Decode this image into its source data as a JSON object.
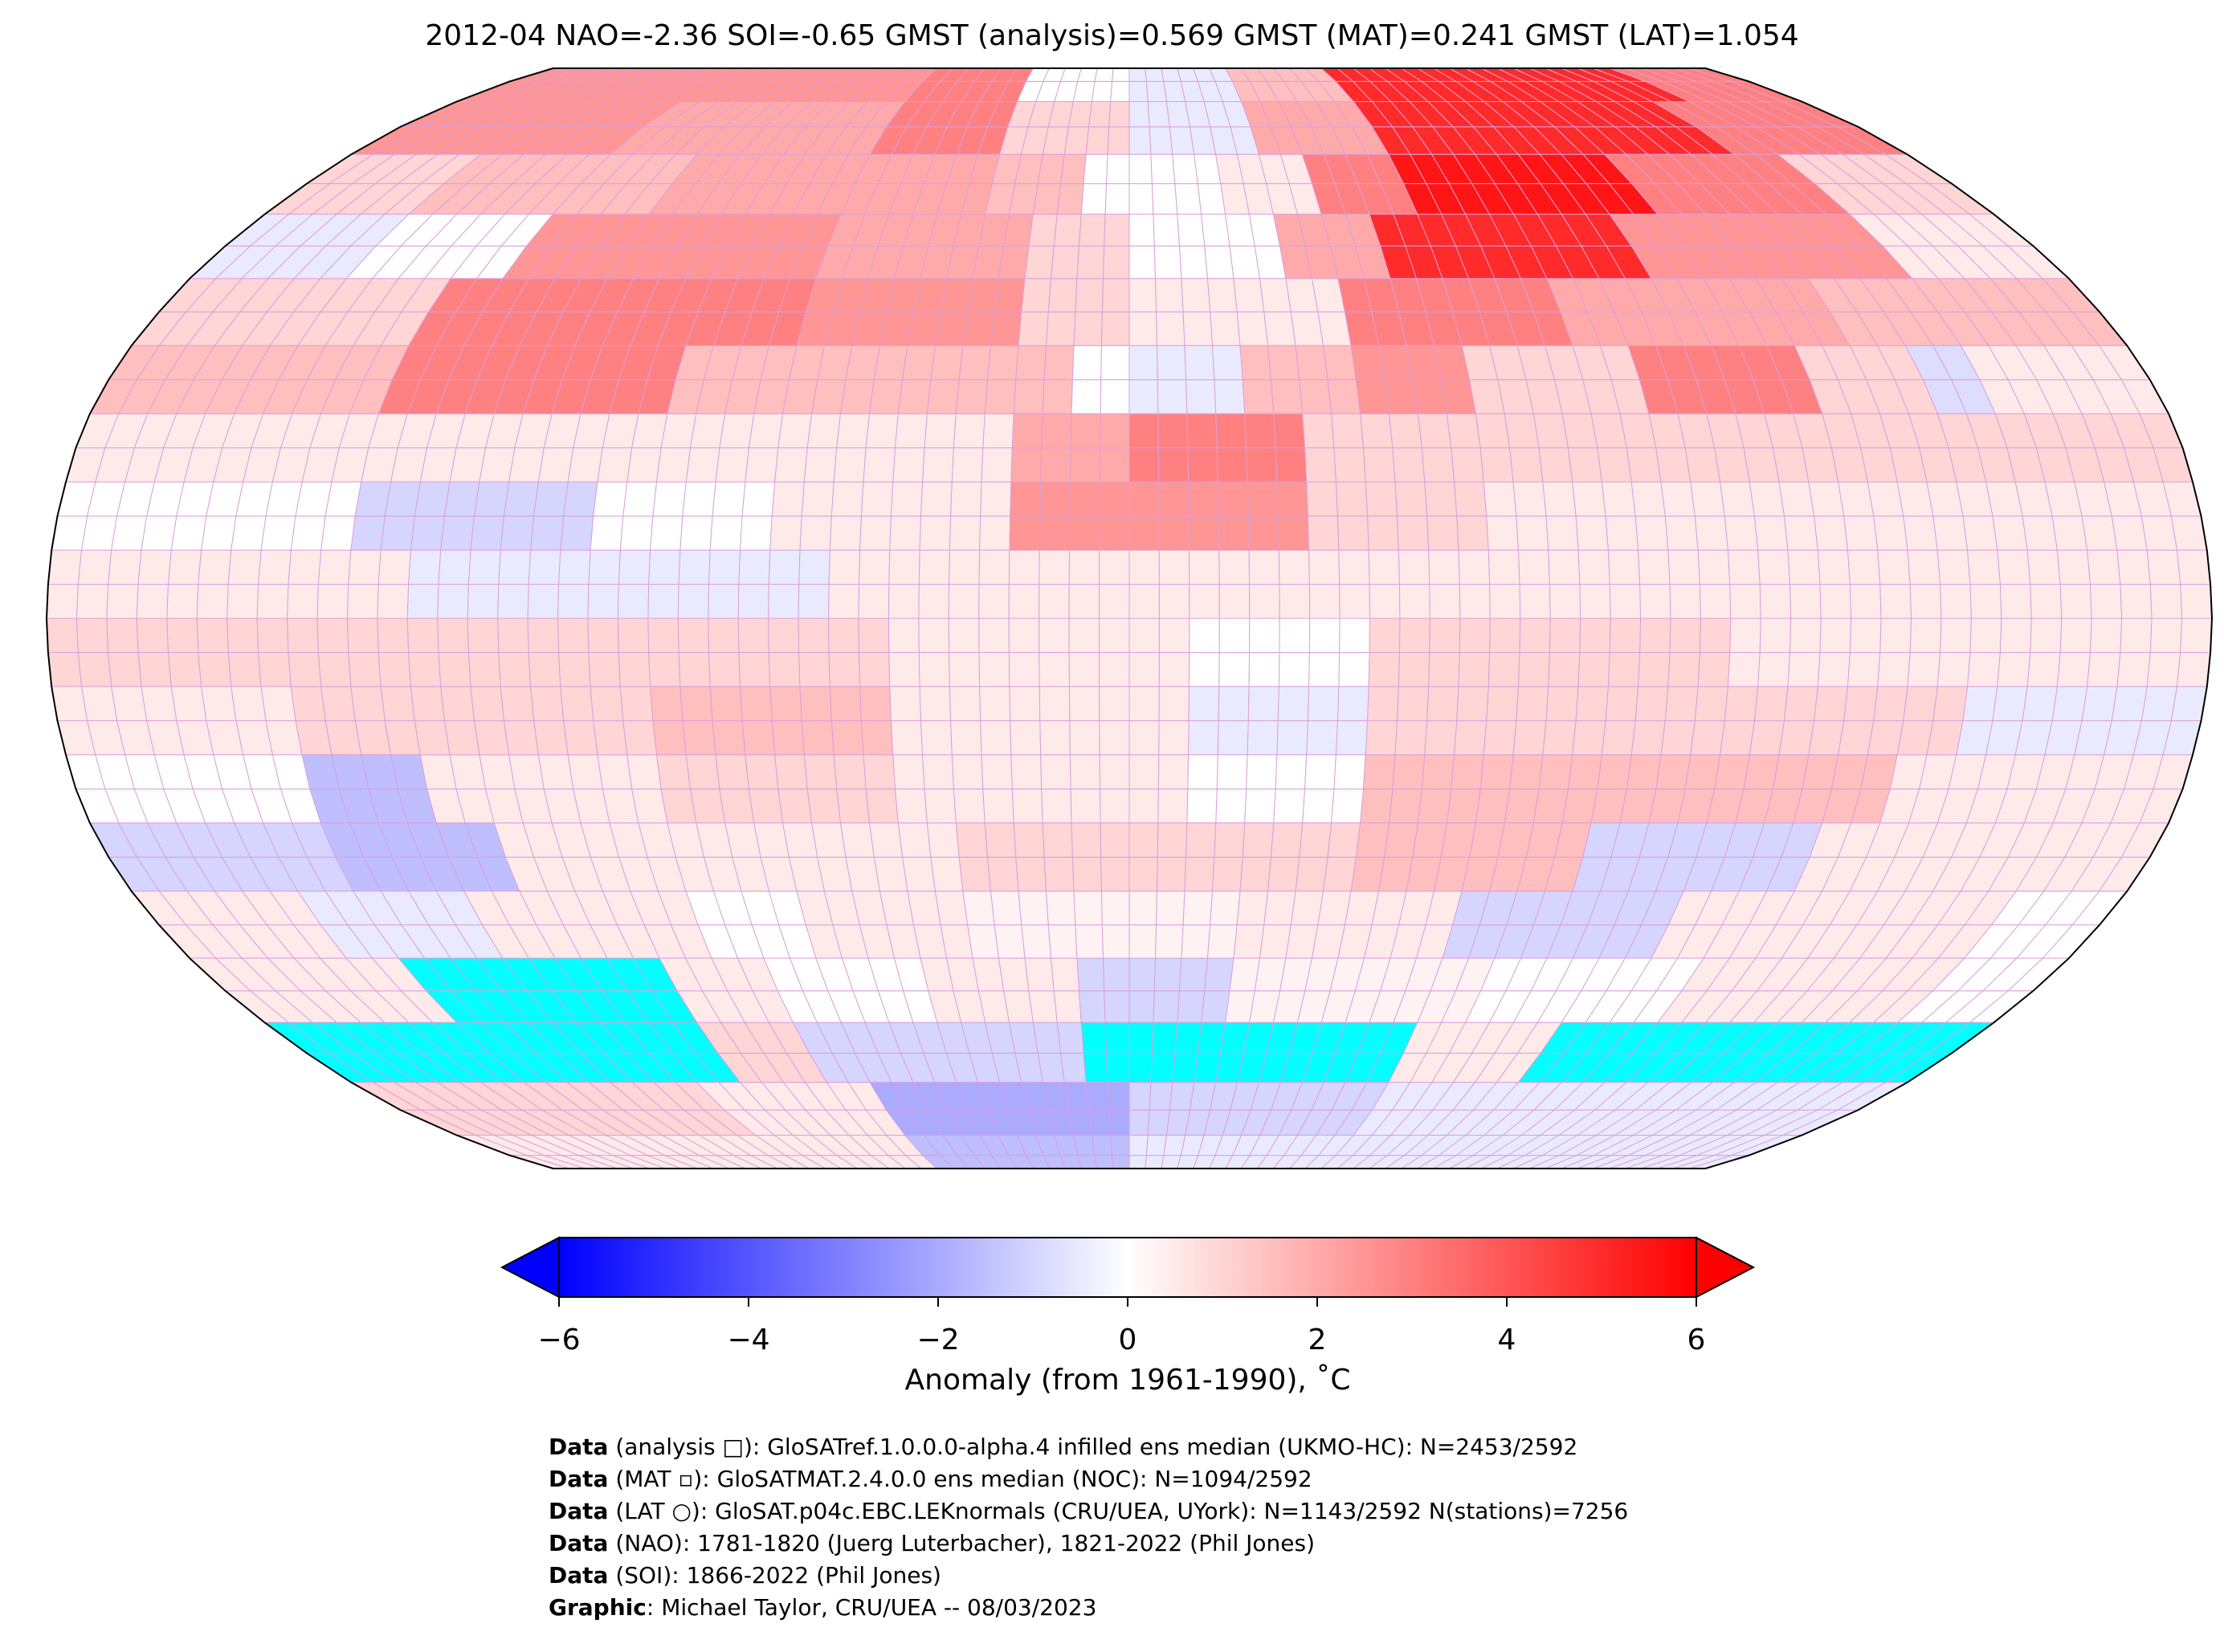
{
  "title": "2012-04 NAO=-2.36 SOI=-0.65 GMST (analysis)=0.569 GMST (MAT)=0.241 GMST (LAT)=1.054",
  "colorbar": {
    "label": "Anomaly (from 1961-1990), ˚C",
    "ticks": [
      "−6",
      "−4",
      "−2",
      "0",
      "2",
      "4",
      "6"
    ],
    "tick_values": [
      -6,
      -4,
      -2,
      0,
      2,
      4,
      6
    ],
    "range": [
      -6,
      6
    ],
    "colormap": "bwr",
    "low_color": "#0000ff",
    "mid_color": "#ffffff",
    "high_color": "#ff0000",
    "missing_color": "#00ffff"
  },
  "footer": [
    {
      "bold": "Data",
      "text": " (analysis □): GloSATref.1.0.0.0-alpha.4 infilled ens median (UKMO-HC): N=2453/2592"
    },
    {
      "bold": "Data",
      "text": " (MAT ▫): GloSATMAT.2.4.0.0 ens median (NOC): N=1094/2592"
    },
    {
      "bold": "Data",
      "text": " (LAT ○): GloSAT.p04c.EBC.LEKnormals (CRU/UEA, UYork): N=1143/2592 N(stations)=7256"
    },
    {
      "bold": "Data",
      "text": " (NAO): 1781-1820 (Juerg Luterbacher), 1821-2022 (Phil Jones)"
    },
    {
      "bold": "Data",
      "text": " (SOI): 1866-2022 (Phil Jones)"
    },
    {
      "bold": "Graphic",
      "text": ": Michael Taylor, CRU/UEA -- 08/03/2023"
    }
  ],
  "chart_data": {
    "type": "heatmap",
    "projection": "Robinson",
    "units": "°C anomaly",
    "rows": [
      {
        "lat": [
          80,
          90
        ],
        "seg": [
          [
            -180,
            -60,
            2.5
          ],
          [
            -60,
            -30,
            3
          ],
          [
            -30,
            0,
            0
          ],
          [
            0,
            30,
            -0.5
          ],
          [
            30,
            60,
            1.5
          ],
          [
            60,
            150,
            5
          ],
          [
            150,
            180,
            3
          ]
        ]
      },
      {
        "lat": [
          70,
          80
        ],
        "seg": [
          [
            -180,
            -120,
            2.5
          ],
          [
            -120,
            -60,
            2
          ],
          [
            -60,
            -30,
            3
          ],
          [
            -30,
            0,
            1
          ],
          [
            0,
            30,
            -0.5
          ],
          [
            30,
            60,
            2
          ],
          [
            60,
            140,
            5
          ],
          [
            140,
            180,
            3
          ]
        ]
      },
      {
        "lat": [
          60,
          70
        ],
        "seg": [
          [
            -180,
            -150,
            1
          ],
          [
            -150,
            -100,
            1.5
          ],
          [
            -100,
            -60,
            2
          ],
          [
            -60,
            -30,
            2
          ],
          [
            -30,
            -10,
            1.5
          ],
          [
            -10,
            20,
            0
          ],
          [
            20,
            40,
            0.5
          ],
          [
            40,
            60,
            3
          ],
          [
            60,
            110,
            5.5
          ],
          [
            110,
            150,
            3
          ],
          [
            150,
            180,
            1
          ]
        ]
      },
      {
        "lat": [
          50,
          60
        ],
        "seg": [
          [
            -180,
            -150,
            -0.5
          ],
          [
            -150,
            -120,
            0
          ],
          [
            -120,
            -60,
            2.5
          ],
          [
            -60,
            -20,
            2
          ],
          [
            -20,
            0,
            1
          ],
          [
            0,
            30,
            0
          ],
          [
            30,
            50,
            2
          ],
          [
            50,
            100,
            5
          ],
          [
            100,
            150,
            2.5
          ],
          [
            150,
            180,
            0.5
          ]
        ]
      },
      {
        "lat": [
          40,
          50
        ],
        "seg": [
          [
            -180,
            -130,
            1
          ],
          [
            -130,
            -60,
            3
          ],
          [
            -60,
            -20,
            2.5
          ],
          [
            -20,
            0,
            1
          ],
          [
            0,
            40,
            0.5
          ],
          [
            40,
            80,
            3
          ],
          [
            80,
            130,
            2
          ],
          [
            130,
            180,
            1.5
          ]
        ]
      },
      {
        "lat": [
          30,
          40
        ],
        "seg": [
          [
            -180,
            -130,
            1.5
          ],
          [
            -130,
            -80,
            3
          ],
          [
            -80,
            -10,
            1.5
          ],
          [
            -10,
            0,
            0
          ],
          [
            0,
            20,
            -0.5
          ],
          [
            20,
            40,
            1.5
          ],
          [
            40,
            60,
            2.5
          ],
          [
            60,
            90,
            1
          ],
          [
            90,
            120,
            3
          ],
          [
            120,
            140,
            1
          ],
          [
            140,
            150,
            -0.8
          ],
          [
            150,
            180,
            0.5
          ]
        ]
      },
      {
        "lat": [
          20,
          30
        ],
        "seg": [
          [
            -180,
            -20,
            0.5
          ],
          [
            -20,
            0,
            2
          ],
          [
            0,
            30,
            3
          ],
          [
            30,
            180,
            1
          ]
        ]
      },
      {
        "lat": [
          10,
          20
        ],
        "seg": [
          [
            -180,
            -130,
            0
          ],
          [
            -130,
            -90,
            -1
          ],
          [
            -90,
            -60,
            0
          ],
          [
            -60,
            -20,
            0.5
          ],
          [
            -20,
            30,
            2.5
          ],
          [
            30,
            60,
            1
          ],
          [
            60,
            180,
            0.5
          ]
        ]
      },
      {
        "lat": [
          0,
          10
        ],
        "seg": [
          [
            -180,
            -120,
            0.5
          ],
          [
            -120,
            -50,
            -0.5
          ],
          [
            -50,
            180,
            0.5
          ]
        ]
      },
      {
        "lat": [
          -10,
          0
        ],
        "seg": [
          [
            -180,
            -40,
            1
          ],
          [
            -40,
            10,
            0.5
          ],
          [
            10,
            40,
            0
          ],
          [
            40,
            100,
            1
          ],
          [
            100,
            180,
            0.5
          ]
        ]
      },
      {
        "lat": [
          -20,
          -10
        ],
        "seg": [
          [
            -180,
            -140,
            0.5
          ],
          [
            -140,
            -80,
            1
          ],
          [
            -80,
            -40,
            1.5
          ],
          [
            -40,
            10,
            0.5
          ],
          [
            10,
            40,
            -0.5
          ],
          [
            40,
            140,
            1
          ],
          [
            140,
            180,
            -0.5
          ]
        ]
      },
      {
        "lat": [
          -30,
          -20
        ],
        "seg": [
          [
            -180,
            -140,
            0
          ],
          [
            -140,
            -120,
            -1.5
          ],
          [
            -120,
            -80,
            0.5
          ],
          [
            -80,
            -40,
            1
          ],
          [
            -40,
            10,
            0.5
          ],
          [
            10,
            40,
            0
          ],
          [
            40,
            130,
            1.5
          ],
          [
            130,
            180,
            0.5
          ]
        ]
      },
      {
        "lat": [
          -40,
          -30
        ],
        "seg": [
          [
            -180,
            -140,
            -1
          ],
          [
            -140,
            -110,
            -1.5
          ],
          [
            -110,
            -30,
            0.5
          ],
          [
            -30,
            40,
            1
          ],
          [
            40,
            80,
            1.5
          ],
          [
            80,
            120,
            -1
          ],
          [
            120,
            180,
            0.5
          ]
        ]
      },
      {
        "lat": [
          -50,
          -40
        ],
        "seg": [
          [
            -180,
            -150,
            0.5
          ],
          [
            -150,
            -120,
            -0.5
          ],
          [
            -120,
            -80,
            0.5
          ],
          [
            -80,
            -60,
            0
          ],
          [
            -60,
            -30,
            0.5
          ],
          [
            -30,
            20,
            0.3
          ],
          [
            20,
            60,
            0.5
          ],
          [
            60,
            100,
            -1
          ],
          [
            100,
            160,
            0.5
          ],
          [
            160,
            180,
            0
          ]
        ]
      },
      {
        "lat": [
          -60,
          -50
        ],
        "seg": [
          [
            -180,
            -140,
            0.5
          ],
          [
            -140,
            -90,
            null
          ],
          [
            -90,
            -70,
            0.5
          ],
          [
            -70,
            -40,
            0
          ],
          [
            -40,
            -10,
            0.5
          ],
          [
            -10,
            20,
            -1
          ],
          [
            20,
            70,
            0.3
          ],
          [
            70,
            110,
            0
          ],
          [
            110,
            160,
            0.5
          ],
          [
            160,
            180,
            0
          ]
        ]
      },
      {
        "lat": [
          -70,
          -60
        ],
        "seg": [
          [
            -180,
            -90,
            null
          ],
          [
            -90,
            -70,
            1
          ],
          [
            -70,
            -10,
            -1
          ],
          [
            -10,
            60,
            null
          ],
          [
            60,
            90,
            0.5
          ],
          [
            90,
            180,
            null
          ]
        ]
      },
      {
        "lat": [
          -80,
          -70
        ],
        "seg": [
          [
            -180,
            -100,
            1
          ],
          [
            -100,
            -60,
            0.5
          ],
          [
            -60,
            0,
            -2
          ],
          [
            0,
            60,
            -1
          ],
          [
            60,
            180,
            -0.5
          ]
        ]
      },
      {
        "lat": [
          -90,
          -80
        ],
        "seg": [
          [
            -180,
            -60,
            0.5
          ],
          [
            -60,
            0,
            -1.5
          ],
          [
            0,
            180,
            -0.5
          ]
        ]
      }
    ]
  }
}
